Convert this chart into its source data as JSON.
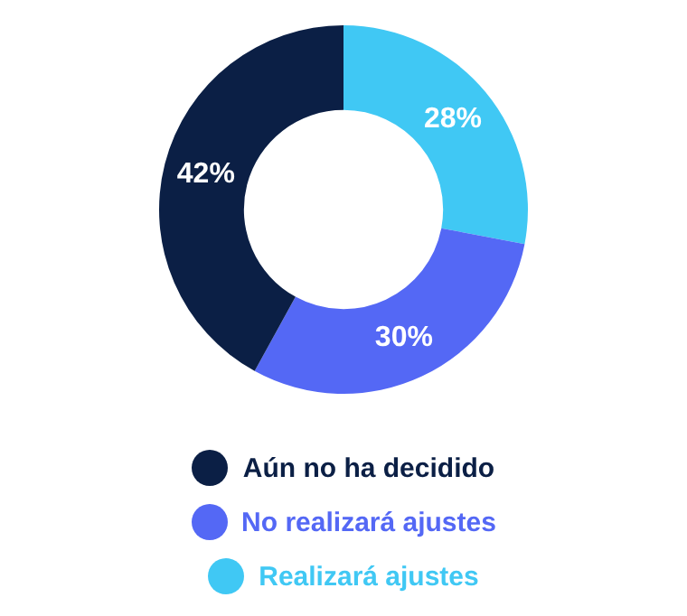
{
  "chart_data": {
    "type": "donut",
    "categories": [
      "Aún no ha decidido",
      "No realizará ajustes",
      "Realizará ajustes"
    ],
    "values": [
      42,
      30,
      28
    ],
    "colors": [
      "#0b1f45",
      "#5468f5",
      "#40c8f4"
    ],
    "value_labels": [
      "42%",
      "30%",
      "28%"
    ],
    "legend": "bottom"
  }
}
